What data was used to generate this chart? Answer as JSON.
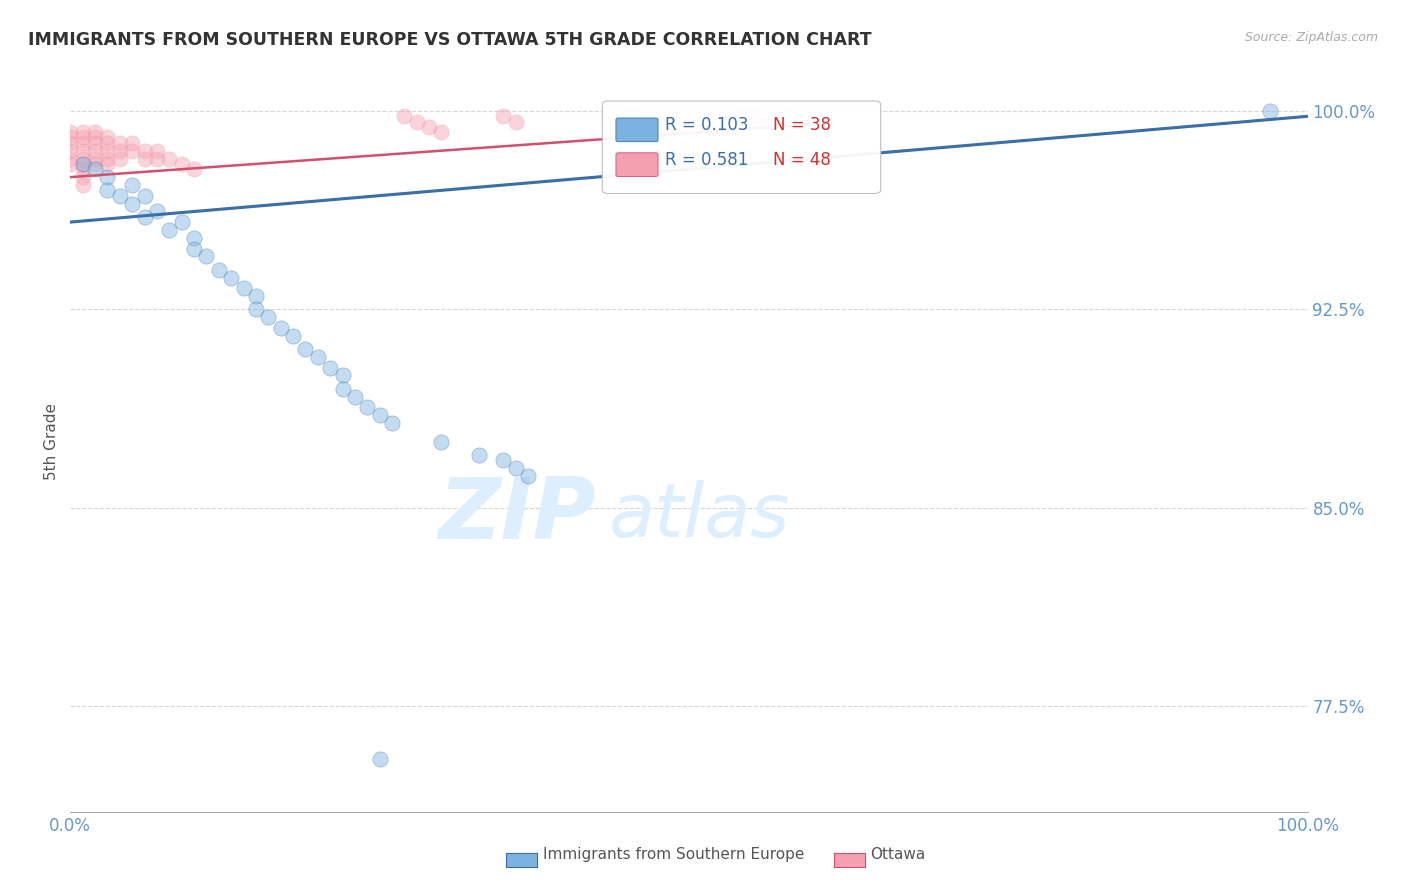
{
  "title": "IMMIGRANTS FROM SOUTHERN EUROPE VS OTTAWA 5TH GRADE CORRELATION CHART",
  "source": "Source: ZipAtlas.com",
  "ylabel": "5th Grade",
  "watermark": "ZIPatlas",
  "legend_blue_r": "R = 0.103",
  "legend_blue_n": "N = 38",
  "legend_pink_r": "R = 0.581",
  "legend_pink_n": "N = 48",
  "legend_label_blue": "Immigrants from Southern Europe",
  "legend_label_pink": "Ottawa",
  "xlim": [
    0.0,
    1.0
  ],
  "ylim": [
    0.735,
    1.015
  ],
  "yticks": [
    0.775,
    0.85,
    0.925,
    1.0
  ],
  "ytick_labels": [
    "77.5%",
    "85.0%",
    "92.5%",
    "100.0%"
  ],
  "xticks": [
    0.0,
    1.0
  ],
  "xtick_labels": [
    "0.0%",
    "100.0%"
  ],
  "blue_scatter_x": [
    0.01,
    0.02,
    0.03,
    0.03,
    0.04,
    0.05,
    0.05,
    0.06,
    0.06,
    0.07,
    0.08,
    0.09,
    0.1,
    0.1,
    0.11,
    0.12,
    0.13,
    0.14,
    0.15,
    0.15,
    0.16,
    0.17,
    0.18,
    0.19,
    0.2,
    0.21,
    0.22,
    0.22,
    0.23,
    0.24,
    0.25,
    0.26,
    0.3,
    0.33,
    0.35,
    0.36,
    0.37,
    0.97
  ],
  "blue_scatter_y": [
    0.98,
    0.978,
    0.975,
    0.97,
    0.968,
    0.972,
    0.965,
    0.968,
    0.96,
    0.962,
    0.955,
    0.958,
    0.952,
    0.948,
    0.945,
    0.94,
    0.937,
    0.933,
    0.93,
    0.925,
    0.922,
    0.918,
    0.915,
    0.91,
    0.907,
    0.903,
    0.9,
    0.895,
    0.892,
    0.888,
    0.885,
    0.882,
    0.875,
    0.87,
    0.868,
    0.865,
    0.862,
    1.0
  ],
  "blue_outlier_x": [
    0.25
  ],
  "blue_outlier_y": [
    0.755
  ],
  "pink_scatter_x": [
    0.0,
    0.0,
    0.0,
    0.0,
    0.0,
    0.0,
    0.01,
    0.01,
    0.01,
    0.01,
    0.01,
    0.01,
    0.01,
    0.01,
    0.01,
    0.02,
    0.02,
    0.02,
    0.02,
    0.02,
    0.02,
    0.03,
    0.03,
    0.03,
    0.03,
    0.03,
    0.04,
    0.04,
    0.04,
    0.05,
    0.05,
    0.06,
    0.06,
    0.07,
    0.07,
    0.08,
    0.09,
    0.1,
    0.27,
    0.28,
    0.29,
    0.3,
    0.35,
    0.36,
    0.55,
    0.56,
    0.57,
    0.58
  ],
  "pink_scatter_y": [
    0.992,
    0.99,
    0.988,
    0.985,
    0.982,
    0.98,
    0.992,
    0.99,
    0.988,
    0.985,
    0.982,
    0.98,
    0.978,
    0.975,
    0.972,
    0.992,
    0.99,
    0.988,
    0.985,
    0.982,
    0.98,
    0.99,
    0.988,
    0.985,
    0.982,
    0.98,
    0.988,
    0.985,
    0.982,
    0.988,
    0.985,
    0.985,
    0.982,
    0.985,
    0.982,
    0.982,
    0.98,
    0.978,
    0.998,
    0.996,
    0.994,
    0.992,
    0.998,
    0.996,
    0.998,
    0.996,
    0.994,
    0.992
  ],
  "blue_line_x": [
    0.0,
    1.0
  ],
  "blue_line_y": [
    0.958,
    0.998
  ],
  "pink_line_x": [
    0.0,
    0.6
  ],
  "pink_line_y": [
    0.975,
    0.995
  ],
  "blue_color": "#7ab3e0",
  "pink_color": "#f4a0b0",
  "blue_line_color": "#3a6fa8",
  "pink_line_color": "#d05070",
  "background_color": "#ffffff",
  "grid_color": "#cccccc",
  "title_color": "#333333",
  "axis_label_color": "#6699cc",
  "watermark_color": "#ddeeff",
  "scatter_size": 120,
  "scatter_alpha": 0.45
}
